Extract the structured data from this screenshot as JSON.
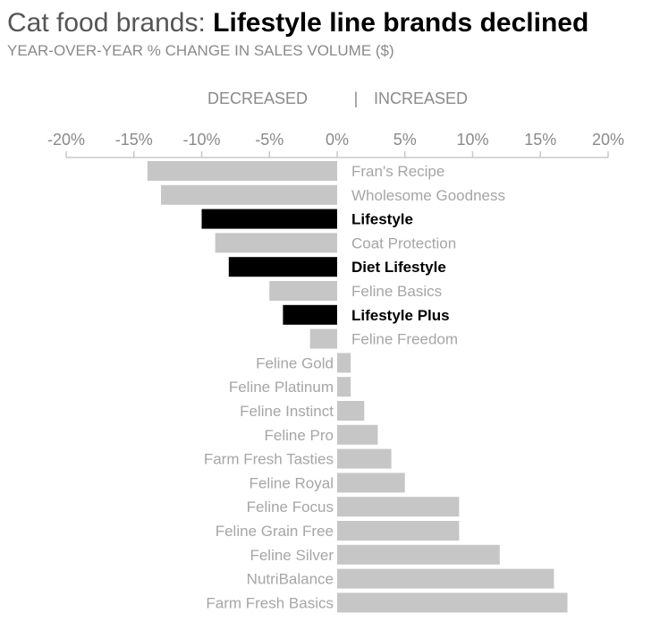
{
  "chart_data": {
    "type": "bar",
    "orientation": "horizontal",
    "title_prefix": "Cat food brands: ",
    "title_emphasis": "Lifestyle line brands declined",
    "subtitle": "YEAR-OVER-YEAR % CHANGE IN SALES VOLUME ($)",
    "direction_labels": {
      "decreased": "DECREASED",
      "separator": "|",
      "increased": "INCREASED"
    },
    "xlim": [
      -20,
      20
    ],
    "x_ticks": [
      -20,
      -15,
      -10,
      -5,
      0,
      5,
      10,
      15,
      20
    ],
    "x_tick_labels": [
      "-20%",
      "-15%",
      "-10%",
      "-5%",
      "0%",
      "5%",
      "10%",
      "15%",
      "20%"
    ],
    "colors": {
      "default": "#c6c6c6",
      "highlight": "#000000"
    },
    "categories": [
      "Fran's Recipe",
      "Wholesome Goodness",
      "Lifestyle",
      "Coat Protection",
      "Diet Lifestyle",
      "Feline Basics",
      "Lifestyle Plus",
      "Feline Freedom",
      "Feline Gold",
      "Feline Platinum",
      "Feline Instinct",
      "Feline Pro",
      "Farm Fresh Tasties",
      "Feline Royal",
      "Feline Focus",
      "Feline Grain Free",
      "Feline Silver",
      "NutriBalance",
      "Farm Fresh Basics"
    ],
    "values": [
      -14,
      -13,
      -10,
      -9,
      -8,
      -5,
      -4,
      -2,
      1,
      1,
      2,
      3,
      4,
      5,
      9,
      9,
      12,
      16,
      17
    ],
    "highlighted": [
      "Lifestyle",
      "Diet Lifestyle",
      "Lifestyle Plus"
    ]
  }
}
